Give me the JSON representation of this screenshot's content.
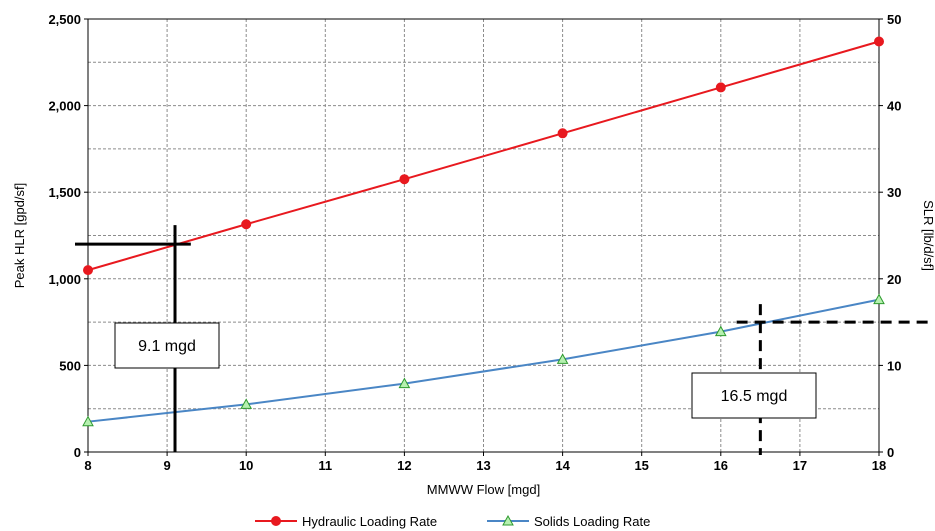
{
  "chart_data": {
    "type": "line",
    "title": "",
    "xlabel": "MMWW Flow [mgd]",
    "ylabel": "Peak HLR [gpd/sf]",
    "y2label": "SLR [lb/d/sf]",
    "xlim": [
      8,
      18
    ],
    "ylim": [
      0,
      2500
    ],
    "y2lim": [
      0,
      50
    ],
    "grid": true,
    "legend_position": "bottom",
    "x_ticks": [
      "8",
      "9",
      "10",
      "11",
      "12",
      "13",
      "14",
      "15",
      "16",
      "17",
      "18"
    ],
    "y_ticks": [
      "0",
      "500",
      "1,000",
      "1,500",
      "2,000",
      "2,500"
    ],
    "y2_ticks": [
      "0",
      "10",
      "20",
      "30",
      "40",
      "50"
    ],
    "series": [
      {
        "name": "Hydraulic Loading Rate",
        "axis": "left",
        "color": "#e8191f",
        "marker": "circle",
        "x": [
          8,
          10,
          12,
          14,
          16,
          18
        ],
        "values": [
          1050,
          1315,
          1575,
          1840,
          2105,
          2370
        ]
      },
      {
        "name": "Solids Loading Rate",
        "axis": "right",
        "color": "#4a86c5",
        "marker": "triangle",
        "x": [
          8,
          10,
          12,
          14,
          16,
          18
        ],
        "values": [
          3.5,
          5.5,
          7.9,
          10.7,
          13.9,
          17.6
        ]
      }
    ],
    "annotations": [
      {
        "label": "9.1 mgd",
        "x": 9.1,
        "y": 1200,
        "axis": "left",
        "style": "solid",
        "color": "#000000"
      },
      {
        "label": "16.5 mgd",
        "x": 16.5,
        "y": 15,
        "axis": "right",
        "style": "dashed",
        "color": "#000000"
      }
    ]
  }
}
